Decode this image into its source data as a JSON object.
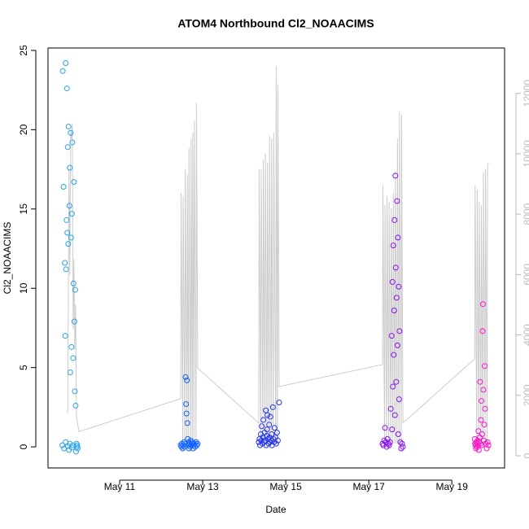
{
  "chart_data": {
    "type": "scatter",
    "title": "ATOM4 Northbound Cl2_NOAACIMS",
    "x_label": "Date",
    "y_label": "Cl2_NOAACIMS",
    "xlim": [
      9.275,
      20.27
    ],
    "ylim": [
      -1.33,
      25.15
    ],
    "y2lim": [
      -404,
      13500
    ],
    "xticks": [
      {
        "value": 11,
        "label": "May 11"
      },
      {
        "value": 13,
        "label": "May 13"
      },
      {
        "value": 15,
        "label": "May 15"
      },
      {
        "value": 17,
        "label": "May 17"
      },
      {
        "value": 19,
        "label": "May 19"
      }
    ],
    "yticks": [
      0,
      5,
      10,
      15,
      20,
      25
    ],
    "y2ticks": [
      0,
      2000,
      4000,
      6000,
      8000,
      10000,
      12000
    ],
    "series": [
      {
        "type": "line",
        "axis": "y2",
        "color": "#cccccc",
        "x": [
          9.75,
          9.78,
          9.8,
          9.82,
          9.84,
          9.86,
          9.88,
          9.9,
          9.92,
          9.94,
          9.96,
          10.02,
          12.47,
          12.48,
          12.52,
          12.53,
          12.57,
          12.58,
          12.62,
          12.63,
          12.66,
          12.67,
          12.71,
          12.72,
          12.75,
          12.76,
          12.79,
          12.8,
          12.84,
          12.85,
          12.88,
          14.35,
          14.36,
          14.4,
          14.41,
          14.45,
          14.46,
          14.5,
          14.51,
          14.55,
          14.56,
          14.6,
          14.61,
          14.65,
          14.66,
          14.7,
          14.71,
          14.76,
          14.77,
          14.8,
          14.81,
          14.84,
          17.33,
          17.34,
          17.38,
          17.39,
          17.43,
          17.44,
          17.48,
          17.49,
          17.53,
          17.54,
          17.58,
          17.59,
          17.63,
          17.64,
          17.68,
          17.69,
          17.73,
          17.74,
          17.78,
          17.79,
          17.82,
          19.55,
          19.56,
          19.6,
          19.61,
          19.65,
          19.66,
          19.7,
          19.71,
          19.75,
          19.76,
          19.8,
          19.81,
          19.85,
          19.86,
          19.88
        ],
        "values": [
          1400,
          9500,
          6000,
          10800,
          10500,
          11000,
          4200,
          6500,
          3500,
          5000,
          1300,
          800,
          1890,
          8700,
          400,
          8600,
          400,
          9500,
          400,
          9300,
          400,
          10200,
          400,
          10500,
          400,
          10700,
          400,
          11100,
          400,
          11700,
          2900,
          1080,
          9500,
          400,
          9500,
          400,
          9800,
          400,
          10000,
          400,
          9700,
          400,
          10600,
          400,
          10500,
          400,
          10700,
          400,
          12900,
          400,
          12300,
          2290,
          3020,
          8950,
          400,
          8300,
          400,
          8600,
          400,
          8400,
          400,
          8200,
          400,
          8700,
          400,
          9400,
          400,
          10500,
          400,
          11400,
          400,
          11300,
          1080,
          3210,
          8950,
          400,
          8800,
          400,
          8400,
          400,
          8300,
          400,
          9400,
          400,
          9500,
          400,
          9600,
          9700
        ]
      },
      {
        "type": "scatter",
        "color": "#29a3e6",
        "x": [
          9.62,
          9.63,
          9.65,
          9.66,
          9.68,
          9.69,
          9.7,
          9.71,
          9.72,
          9.73,
          9.74,
          9.75,
          9.76,
          9.77,
          9.78,
          9.79,
          9.8,
          9.81,
          9.82,
          9.83,
          9.84,
          9.85,
          9.86,
          9.87,
          9.88,
          9.89,
          9.9,
          9.91,
          9.92,
          9.93,
          9.94,
          9.95,
          9.96,
          9.97,
          9.98,
          9.99,
          9.7,
          9.75,
          9.8,
          9.85
        ],
        "values": [
          0.1,
          23.7,
          16.4,
          -0.1,
          11.6,
          7.0,
          24.2,
          11.2,
          14.3,
          22.6,
          13.5,
          18.9,
          12.8,
          20.2,
          -0.2,
          15.2,
          17.6,
          4.7,
          19.8,
          13.2,
          6.3,
          14.7,
          19.2,
          0.1,
          5.6,
          10.3,
          16.7,
          7.9,
          3.5,
          9.9,
          2.6,
          -0.3,
          0.2,
          0.0,
          0.1,
          -0.1,
          0.3,
          0.05,
          0.2,
          -0.05
        ]
      },
      {
        "type": "scatter",
        "color": "#1060ff",
        "x": [
          12.47,
          12.49,
          12.5,
          12.52,
          12.53,
          12.55,
          12.56,
          12.58,
          12.59,
          12.6,
          12.61,
          12.62,
          12.63,
          12.64,
          12.65,
          12.66,
          12.67,
          12.68,
          12.7,
          12.71,
          12.72,
          12.74,
          12.75,
          12.77,
          12.79,
          12.8,
          12.82,
          12.84,
          12.86,
          12.88
        ],
        "values": [
          0.1,
          0.0,
          0.2,
          -0.1,
          0.1,
          0.3,
          0.0,
          0.2,
          4.4,
          2.7,
          2.1,
          4.2,
          1.5,
          0.5,
          0.1,
          0.3,
          -0.1,
          0.2,
          0.0,
          0.4,
          0.1,
          0.2,
          0.3,
          -0.1,
          0.1,
          0.2,
          0.0,
          0.3,
          0.1,
          0.2
        ]
      },
      {
        "type": "scatter",
        "color": "#2535ee",
        "x": [
          14.35,
          14.37,
          14.38,
          14.4,
          14.41,
          14.42,
          14.44,
          14.45,
          14.46,
          14.48,
          14.49,
          14.5,
          14.52,
          14.53,
          14.54,
          14.55,
          14.56,
          14.58,
          14.59,
          14.6,
          14.61,
          14.62,
          14.63,
          14.65,
          14.66,
          14.67,
          14.69,
          14.7,
          14.72,
          14.73,
          14.75,
          14.77,
          14.79,
          14.81,
          14.84
        ],
        "values": [
          0.3,
          0.5,
          0.1,
          0.8,
          0.4,
          1.3,
          0.2,
          0.6,
          1.7,
          0.3,
          0.9,
          0.4,
          2.3,
          0.1,
          0.7,
          1.1,
          2.0,
          0.5,
          0.2,
          1.4,
          0.6,
          0.3,
          1.9,
          0.4,
          0.8,
          0.1,
          2.5,
          0.5,
          0.3,
          1.2,
          0.6,
          0.2,
          0.9,
          0.4,
          2.8
        ]
      },
      {
        "type": "scatter",
        "color": "#8a10f0",
        "x": [
          17.33,
          17.35,
          17.37,
          17.39,
          17.41,
          17.43,
          17.45,
          17.47,
          17.49,
          17.51,
          17.53,
          17.55,
          17.56,
          17.57,
          17.58,
          17.59,
          17.6,
          17.61,
          17.62,
          17.63,
          17.64,
          17.65,
          17.66,
          17.67,
          17.68,
          17.69,
          17.7,
          17.71,
          17.72,
          17.73,
          17.74,
          17.76,
          17.78,
          17.8,
          17.82
        ],
        "values": [
          0.2,
          0.1,
          0.4,
          1.2,
          0.3,
          0.0,
          0.5,
          0.2,
          0.1,
          0.3,
          2.4,
          7.0,
          1.1,
          10.4,
          3.8,
          12.7,
          5.8,
          8.6,
          14.3,
          2.0,
          17.1,
          11.3,
          4.1,
          9.4,
          15.5,
          6.4,
          13.2,
          0.8,
          10.1,
          3.0,
          7.3,
          0.3,
          -0.1,
          0.2,
          0.0
        ]
      },
      {
        "type": "scatter",
        "color": "#ff10c8",
        "x": [
          19.55,
          19.56,
          19.57,
          19.58,
          19.59,
          19.6,
          19.61,
          19.62,
          19.63,
          19.64,
          19.65,
          19.66,
          19.67,
          19.68,
          19.69,
          19.7,
          19.71,
          19.72,
          19.73,
          19.74,
          19.75,
          19.76,
          19.77,
          19.78,
          19.79,
          19.8,
          19.82,
          19.84,
          19.86,
          19.88
        ],
        "values": [
          0.5,
          0.2,
          0.1,
          -0.1,
          0.3,
          0.0,
          0.2,
          0.4,
          0.1,
          1.0,
          -0.2,
          0.3,
          0.6,
          4.1,
          0.2,
          1.7,
          2.9,
          0.1,
          0.8,
          7.3,
          9.0,
          3.6,
          0.4,
          1.4,
          5.1,
          2.4,
          0.2,
          -0.1,
          0.3,
          0.1
        ]
      }
    ]
  }
}
